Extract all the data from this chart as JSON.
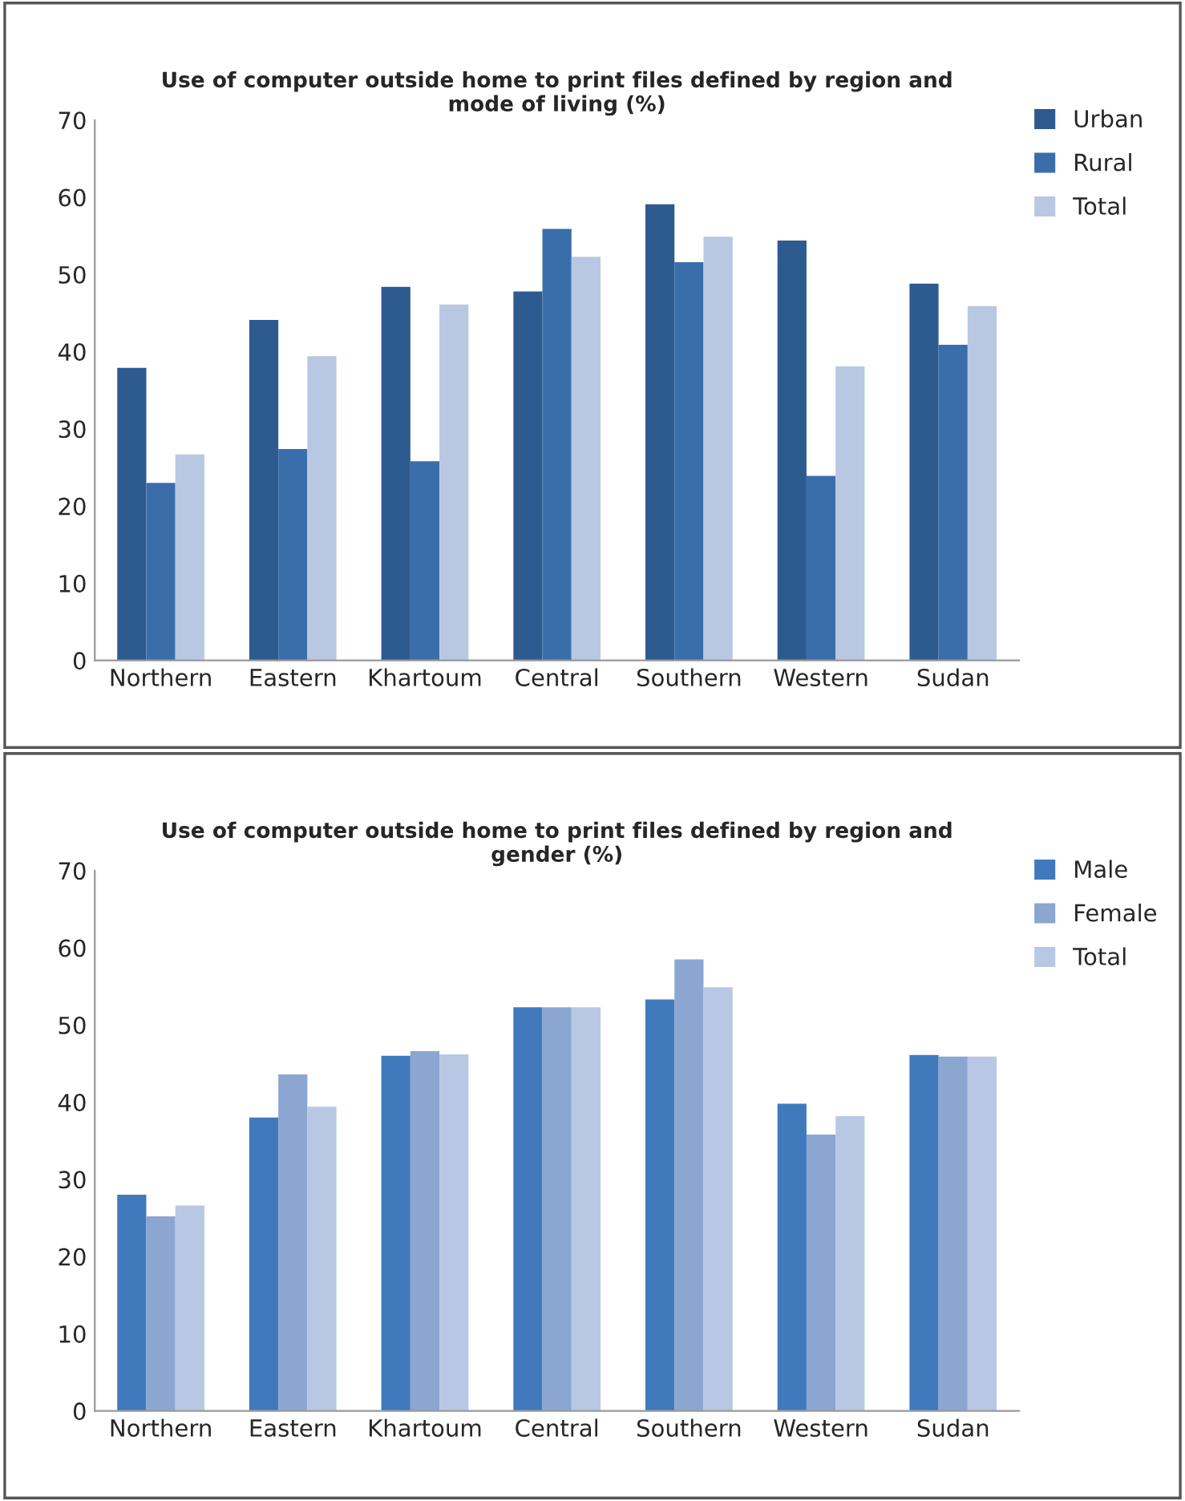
{
  "chart_data": [
    {
      "type": "bar",
      "title": "Use of computer outside home to print files defined by region and\nmode of living (%)",
      "categories": [
        "Northern",
        "Eastern",
        "Khartoum",
        "Central",
        "Southern",
        "Western",
        "Sudan"
      ],
      "series": [
        {
          "name": "Urban",
          "color": "#2e5b8f",
          "values": [
            37.9,
            44.1,
            48.4,
            47.8,
            59.1,
            54.4,
            48.8
          ]
        },
        {
          "name": "Rural",
          "color": "#3a6eab",
          "values": [
            23.0,
            27.4,
            25.8,
            55.9,
            51.6,
            23.9,
            40.9
          ]
        },
        {
          "name": "Total",
          "color": "#b8c8e2",
          "values": [
            26.7,
            39.4,
            46.1,
            52.3,
            54.9,
            38.1,
            45.9
          ]
        }
      ],
      "ylim": [
        0,
        70
      ],
      "yticks": [
        0,
        10,
        20,
        30,
        40,
        50,
        60,
        70
      ],
      "grid": false,
      "legend": "top right"
    },
    {
      "type": "bar",
      "title": "Use of computer outside home to print files defined by region and\ngender (%)",
      "categories": [
        "Northern",
        "Eastern",
        "Khartoum",
        "Central",
        "Southern",
        "Western",
        "Sudan"
      ],
      "series": [
        {
          "name": "Male",
          "color": "#4179bd",
          "values": [
            28.0,
            38.0,
            46.0,
            52.3,
            53.3,
            39.8,
            46.1
          ]
        },
        {
          "name": "Female",
          "color": "#8aa6d1",
          "values": [
            25.2,
            43.6,
            46.6,
            52.3,
            58.5,
            35.8,
            45.9
          ]
        },
        {
          "name": "Total",
          "color": "#b8c8e4",
          "values": [
            26.6,
            39.4,
            46.2,
            52.3,
            54.9,
            38.2,
            45.9
          ]
        }
      ],
      "ylim": [
        0,
        70
      ],
      "yticks": [
        0,
        10,
        20,
        30,
        40,
        50,
        60,
        70
      ],
      "grid": false,
      "legend": "top right"
    }
  ]
}
